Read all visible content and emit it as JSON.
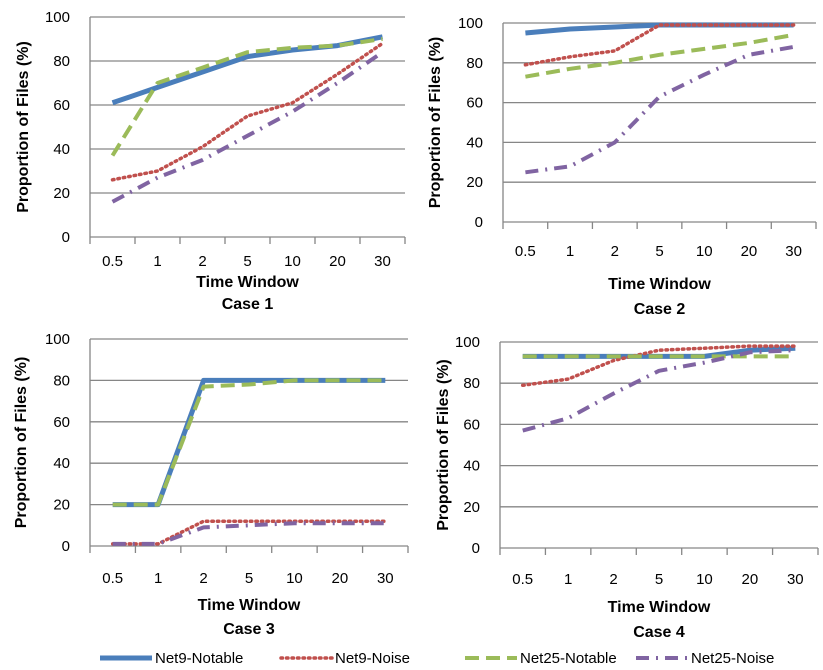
{
  "chart_data": [
    {
      "type": "line",
      "caption": "Case 1",
      "xlabel": "Time Window",
      "ylabel": "Proportion of Files (%)",
      "categories": [
        "0.5",
        "1",
        "2",
        "5",
        "10",
        "20",
        "30"
      ],
      "ylim": [
        0,
        100
      ],
      "yticks": [
        "0",
        "20",
        "40",
        "60",
        "80",
        "100"
      ],
      "grid": true,
      "series": [
        {
          "name": "Net9-Notable",
          "values": [
            61,
            68,
            75,
            82,
            85,
            87,
            91
          ]
        },
        {
          "name": "Net9-Noise",
          "values": [
            26,
            30,
            41,
            55,
            61,
            74,
            88
          ]
        },
        {
          "name": "Net25-Notable",
          "values": [
            37,
            70,
            77,
            84,
            86,
            87,
            90
          ]
        },
        {
          "name": "Net25-Noise",
          "values": [
            16,
            27,
            35,
            46,
            57,
            70,
            84
          ]
        }
      ]
    },
    {
      "type": "line",
      "caption": "Case 2",
      "xlabel": "Time Window",
      "ylabel": "Proportion of Files (%)",
      "categories": [
        "0.5",
        "1",
        "2",
        "5",
        "10",
        "20",
        "30"
      ],
      "ylim": [
        0,
        100
      ],
      "yticks": [
        "0",
        "20",
        "40",
        "60",
        "80",
        "100"
      ],
      "grid": true,
      "series": [
        {
          "name": "Net9-Notable",
          "values": [
            95,
            97,
            98,
            99,
            99,
            99,
            99
          ]
        },
        {
          "name": "Net9-Noise",
          "values": [
            79,
            83,
            86,
            99,
            99,
            99,
            99
          ]
        },
        {
          "name": "Net25-Notable",
          "values": [
            73,
            77,
            80,
            84,
            87,
            90,
            94
          ]
        },
        {
          "name": "Net25-Noise",
          "values": [
            25,
            28,
            40,
            63,
            74,
            84,
            88
          ]
        }
      ]
    },
    {
      "type": "line",
      "caption": "Case 3",
      "xlabel": "Time Window",
      "ylabel": "Proportion of Files (%)",
      "categories": [
        "0.5",
        "1",
        "2",
        "5",
        "10",
        "20",
        "30"
      ],
      "ylim": [
        0,
        100
      ],
      "yticks": [
        "0",
        "20",
        "40",
        "60",
        "80",
        "100"
      ],
      "grid": true,
      "series": [
        {
          "name": "Net9-Notable",
          "values": [
            20,
            20,
            80,
            80,
            80,
            80,
            80
          ]
        },
        {
          "name": "Net9-Noise",
          "values": [
            1,
            1,
            12,
            12,
            12,
            12,
            12
          ]
        },
        {
          "name": "Net25-Notable",
          "values": [
            20,
            20,
            77,
            78,
            80,
            80,
            80
          ]
        },
        {
          "name": "Net25-Noise",
          "values": [
            1,
            1,
            9,
            10,
            11,
            11,
            11
          ]
        }
      ]
    },
    {
      "type": "line",
      "caption": "Case 4",
      "xlabel": "Time Window",
      "ylabel": "Proportion of Files (%)",
      "categories": [
        "0.5",
        "1",
        "2",
        "5",
        "10",
        "20",
        "30"
      ],
      "ylim": [
        0,
        100
      ],
      "yticks": [
        "0",
        "20",
        "40",
        "60",
        "80",
        "100"
      ],
      "grid": true,
      "series": [
        {
          "name": "Net9-Notable",
          "values": [
            93,
            93,
            93,
            93,
            93,
            96,
            97
          ]
        },
        {
          "name": "Net9-Noise",
          "values": [
            79,
            82,
            91,
            96,
            97,
            98,
            98
          ]
        },
        {
          "name": "Net25-Notable",
          "values": [
            93,
            93,
            93,
            93,
            93,
            93,
            93
          ]
        },
        {
          "name": "Net25-Noise",
          "values": [
            57,
            63,
            75,
            86,
            90,
            95,
            96
          ]
        }
      ]
    }
  ],
  "legend": {
    "placement": "bottom",
    "items": [
      {
        "name": "Net9-Notable",
        "color": "#4a7ebb",
        "style": "solid"
      },
      {
        "name": "Net9-Noise",
        "color": "#c0504d",
        "style": "dotted"
      },
      {
        "name": "Net25-Notable",
        "color": "#9bbb59",
        "style": "dashed"
      },
      {
        "name": "Net25-Noise",
        "color": "#8064a2",
        "style": "dash-dot"
      }
    ]
  }
}
